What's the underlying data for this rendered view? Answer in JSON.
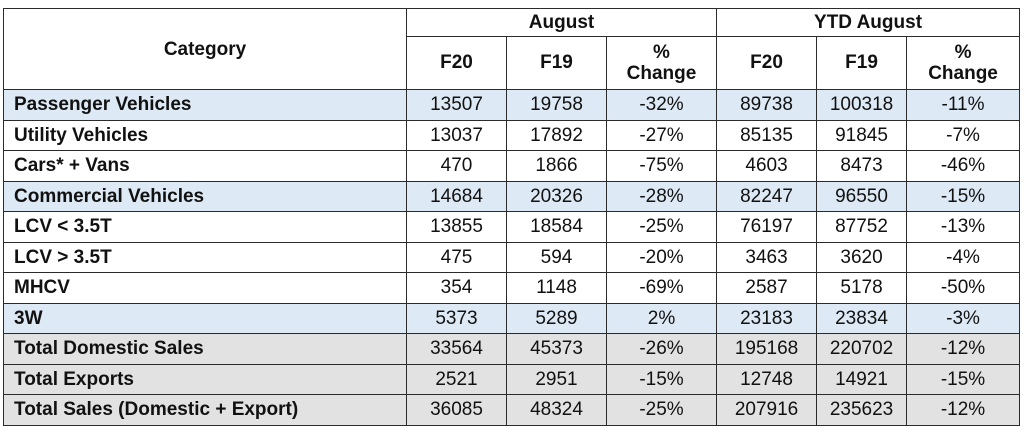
{
  "header": {
    "category": "Category",
    "group_august": "August",
    "group_ytd": "YTD August",
    "sub_f20": "F20",
    "sub_f19": "F19",
    "sub_pct_line1": "%",
    "sub_pct_line2": "Change"
  },
  "rows": [
    {
      "label": "Passenger Vehicles",
      "aug_f20": "13507",
      "aug_f19": "19758",
      "aug_pct": "-32%",
      "ytd_f20": "89738",
      "ytd_f19": "100318",
      "ytd_pct": "-11%"
    },
    {
      "label": "Utility Vehicles",
      "aug_f20": "13037",
      "aug_f19": "17892",
      "aug_pct": "-27%",
      "ytd_f20": "85135",
      "ytd_f19": "91845",
      "ytd_pct": "-7%"
    },
    {
      "label": "Cars* + Vans",
      "aug_f20": "470",
      "aug_f19": "1866",
      "aug_pct": "-75%",
      "ytd_f20": "4603",
      "ytd_f19": "8473",
      "ytd_pct": "-46%"
    },
    {
      "label": "Commercial Vehicles",
      "aug_f20": "14684",
      "aug_f19": "20326",
      "aug_pct": "-28%",
      "ytd_f20": "82247",
      "ytd_f19": "96550",
      "ytd_pct": "-15%"
    },
    {
      "label": "LCV < 3.5T",
      "aug_f20": "13855",
      "aug_f19": "18584",
      "aug_pct": "-25%",
      "ytd_f20": "76197",
      "ytd_f19": "87752",
      "ytd_pct": "-13%"
    },
    {
      "label": "LCV > 3.5T",
      "aug_f20": "475",
      "aug_f19": "594",
      "aug_pct": "-20%",
      "ytd_f20": "3463",
      "ytd_f19": "3620",
      "ytd_pct": "-4%"
    },
    {
      "label": "MHCV",
      "aug_f20": "354",
      "aug_f19": "1148",
      "aug_pct": "-69%",
      "ytd_f20": "2587",
      "ytd_f19": "5178",
      "ytd_pct": "-50%"
    },
    {
      "label": "3W",
      "aug_f20": "5373",
      "aug_f19": "5289",
      "aug_pct": "2%",
      "ytd_f20": "23183",
      "ytd_f19": "23834",
      "ytd_pct": "-3%"
    },
    {
      "label": "Total Domestic Sales",
      "aug_f20": "33564",
      "aug_f19": "45373",
      "aug_pct": "-26%",
      "ytd_f20": "195168",
      "ytd_f19": "220702",
      "ytd_pct": "-12%"
    },
    {
      "label": "Total Exports",
      "aug_f20": "2521",
      "aug_f19": "2951",
      "aug_pct": "-15%",
      "ytd_f20": "12748",
      "ytd_f19": "14921",
      "ytd_pct": "-15%"
    },
    {
      "label": "Total Sales (Domestic + Export)",
      "aug_f20": "36085",
      "aug_f19": "48324",
      "aug_pct": "-25%",
      "ytd_f20": "207916",
      "ytd_f19": "235623",
      "ytd_pct": "-12%"
    }
  ],
  "colors": {
    "highlight_blue": "#dde9f4",
    "total_gray": "#e2e2e2",
    "border": "#2b2b2b"
  }
}
